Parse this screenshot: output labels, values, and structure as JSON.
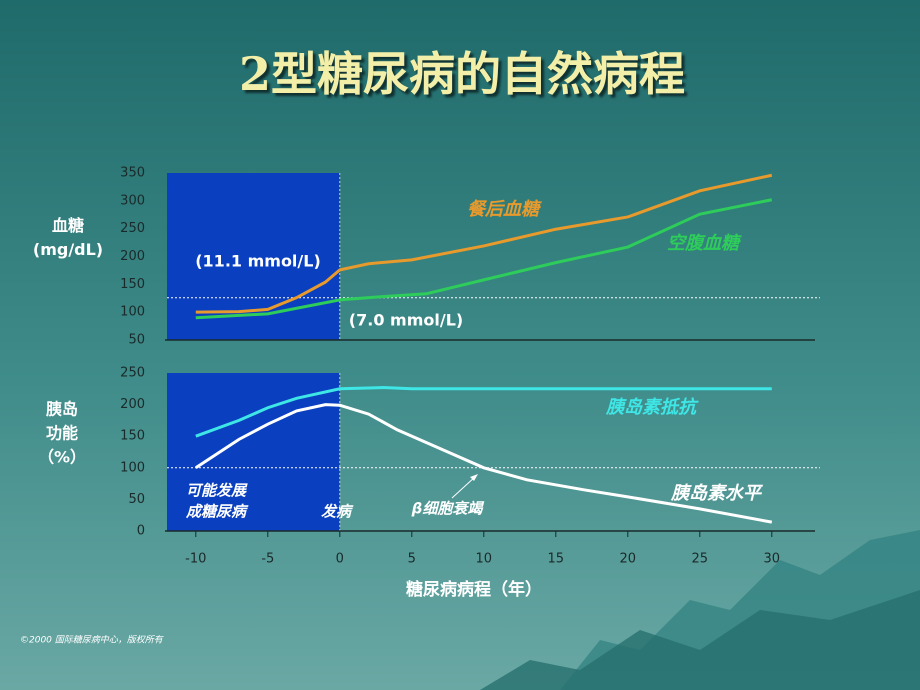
{
  "title": "2型糖尿病的自然病程",
  "footer": "©2000 国际糖尿病中心，版权所有",
  "chart_data": [
    {
      "type": "line",
      "y_label": [
        "血糖",
        "(mg/dL)"
      ],
      "xlim": [
        -12,
        33
      ],
      "ylim": [
        50,
        350
      ],
      "yticks": [
        50,
        100,
        150,
        200,
        250,
        300,
        350
      ],
      "shaded_x_range": [
        -12,
        0
      ],
      "reference_line": 126,
      "annotations": [
        "(11.1 mmol/L)",
        "(7.0 mmol/L)"
      ],
      "series": [
        {
          "name": "餐后血糖",
          "color": "#e89a2c",
          "x": [
            -10,
            -7,
            -5,
            -3,
            -1,
            0,
            2,
            5,
            10,
            15,
            20,
            25,
            30
          ],
          "values": [
            100,
            101,
            105,
            126,
            154,
            176,
            187,
            194,
            219,
            249,
            271,
            318,
            346
          ]
        },
        {
          "name": "空腹血糖",
          "color": "#2ecc5a",
          "x": [
            -10,
            -5,
            0,
            3,
            6,
            10,
            15,
            20,
            25,
            30
          ],
          "values": [
            90,
            97,
            122,
            128,
            133,
            158,
            189,
            217,
            276,
            302
          ]
        }
      ]
    },
    {
      "type": "line",
      "y_label": [
        "胰岛",
        "功能",
        "（%）"
      ],
      "x_label": "糖尿病病程（年）",
      "xlim": [
        -12,
        33
      ],
      "ylim": [
        0,
        250
      ],
      "yticks": [
        0,
        50,
        100,
        150,
        200,
        250
      ],
      "xticks": [
        -10,
        -5,
        0,
        5,
        10,
        15,
        20,
        25,
        30
      ],
      "shaded_x_range": [
        -12,
        0
      ],
      "reference_line": 100,
      "annotations": [
        "可能发展",
        "成糖尿病",
        "发病",
        "β细胞衰竭"
      ],
      "series": [
        {
          "name": "胰岛素抵抗",
          "color": "#3ee6e6",
          "x": [
            -10,
            -7,
            -5,
            -3,
            0,
            3,
            5,
            30
          ],
          "values": [
            150,
            175,
            195,
            210,
            225,
            227,
            225,
            225
          ]
        },
        {
          "name": "胰岛素水平",
          "color": "#ffffff",
          "x": [
            -10,
            -7,
            -5,
            -3,
            -1,
            0,
            2,
            4,
            6,
            8,
            10,
            13,
            17,
            20,
            25,
            30
          ],
          "values": [
            100,
            145,
            169,
            190,
            200,
            199,
            185,
            160,
            140,
            120,
            100,
            81,
            65,
            54,
            35,
            14
          ]
        }
      ]
    }
  ]
}
